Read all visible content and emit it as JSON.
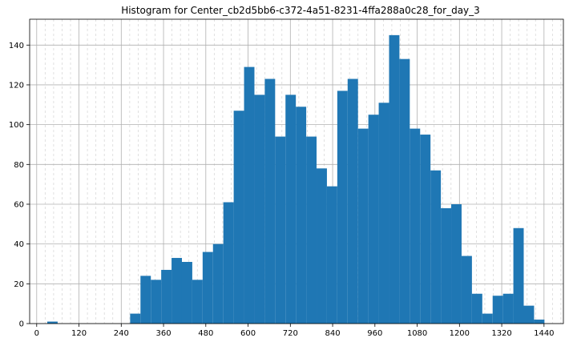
{
  "chart_data": {
    "type": "bar",
    "title": "Histogram for Center_cb2d5bb6-c372-4a51-8231-4ffa288a0c28_for_day_3",
    "xlabel": "",
    "ylabel": "",
    "xlim": [
      -20,
      1495
    ],
    "ylim": [
      0,
      153
    ],
    "x_ticks": [
      0,
      120,
      240,
      360,
      480,
      600,
      720,
      840,
      960,
      1080,
      1200,
      1320,
      1440
    ],
    "x_tick_labels": [
      "0",
      "120",
      "240",
      "360",
      "480",
      "600",
      "720",
      "840",
      "960",
      "1080",
      "1200",
      "1320",
      "1440"
    ],
    "y_ticks": [
      0,
      20,
      40,
      60,
      80,
      100,
      120,
      140
    ],
    "y_tick_labels": [
      "0",
      "20",
      "40",
      "60",
      "80",
      "100",
      "120",
      "140"
    ],
    "bin_width": 29.4,
    "bin_starts": [
      30,
      59.4,
      88.8,
      118.2,
      147.6,
      177,
      206.4,
      235.8,
      265.2,
      294.6,
      324,
      353.4,
      382.8,
      412.2,
      441.6,
      471,
      500.4,
      529.8,
      559.2,
      588.6,
      618,
      647.4,
      676.8,
      706.2,
      735.6,
      765,
      794.4,
      823.8,
      853.2,
      882.6,
      912,
      941.4,
      970.8,
      1000.2,
      1029.6,
      1059,
      1088.4,
      1117.8,
      1147.2,
      1176.6,
      1206,
      1235.4,
      1264.8,
      1294.2,
      1323.6,
      1353,
      1382.4,
      1411.8
    ],
    "values": [
      1,
      0,
      0,
      0,
      0,
      0,
      0,
      0,
      5,
      24,
      22,
      27,
      33,
      31,
      22,
      36,
      40,
      61,
      107,
      129,
      115,
      123,
      94,
      115,
      109,
      94,
      78,
      69,
      117,
      123,
      98,
      105,
      111,
      145,
      133,
      98,
      95,
      77,
      58,
      60,
      34,
      15,
      5,
      14,
      15,
      48,
      9,
      2
    ],
    "grid": true,
    "minor_x_grid": true,
    "bar_color": "#1f77b4"
  }
}
